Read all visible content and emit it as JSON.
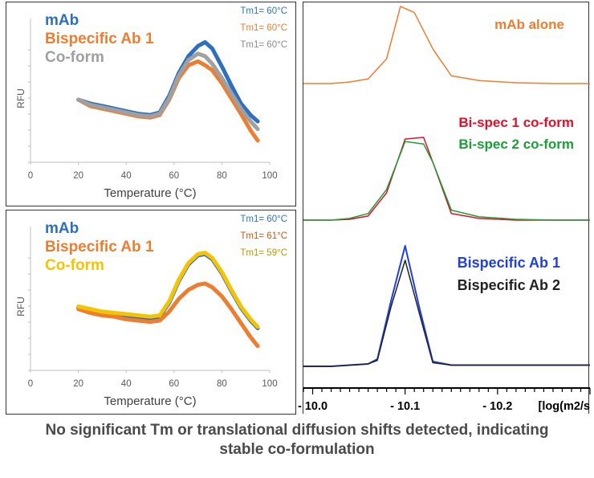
{
  "dsf_panels": [
    {
      "id": "top",
      "legend": [
        {
          "name": "mAb",
          "color": "#2e6fc0"
        },
        {
          "name": "Bispecific Ab 1",
          "color": "#ed7d31"
        },
        {
          "name": "Co-form",
          "color": "#a0a0a0"
        }
      ],
      "tm": [
        {
          "text": "Tm1= 60°C",
          "color": "#2e75b6"
        },
        {
          "text": "Tm1= 60°C",
          "color": "#ed7d31"
        },
        {
          "text": "Tm1= 60°C",
          "color": "#8c8c8c"
        }
      ],
      "ylabel": "RFU",
      "xlabel": "Temperature (°C)",
      "xticks": [
        "0",
        "20",
        "40",
        "60",
        "80",
        "100"
      ]
    },
    {
      "id": "bottom",
      "legend": [
        {
          "name": "mAb",
          "color": "#2e6fc0"
        },
        {
          "name": "Bispecific Ab 1",
          "color": "#ed7d31"
        },
        {
          "name": "Co-form",
          "color": "#f5c400"
        }
      ],
      "tm": [
        {
          "text": "Tm1= 60°C",
          "color": "#2e75b6"
        },
        {
          "text": "Tm1= 61°C",
          "color": "#c55a11"
        },
        {
          "text": "Tm1= 59°C",
          "color": "#b59b00"
        }
      ],
      "ylabel": "RFU",
      "xlabel": "Temperature (°C)",
      "xticks": [
        "0",
        "20",
        "40",
        "60",
        "80",
        "100"
      ]
    }
  ],
  "dosy": {
    "labels": [
      {
        "text": "mAb alone",
        "color": "#ed7d31"
      },
      {
        "text": "Bi-spec 1 co-form",
        "color": "#e0102a"
      },
      {
        "text": "Bi-spec 2 co-form",
        "color": "#1a9e35"
      },
      {
        "text": "Bispecific Ab 1",
        "color": "#1f3fe0"
      },
      {
        "text": "Bispecific Ab 2",
        "color": "#222222"
      }
    ],
    "xticks": [
      "- 10.0",
      "- 10.1",
      "- 10.2"
    ],
    "xlabel": "[log(m2/s"
  },
  "caption_line1": "No significant Tm or translational diffusion shifts detected, indicating",
  "caption_line2": "stable co-formulation",
  "chart_data": [
    {
      "type": "line",
      "panel": "DSF top",
      "xlabel": "Temperature (°C)",
      "ylabel": "RFU",
      "xlim": [
        0,
        100
      ],
      "ylim": [
        0,
        100
      ],
      "series": [
        {
          "name": "mAb",
          "x": [
            20,
            25,
            30,
            35,
            40,
            45,
            50,
            54,
            58,
            62,
            66,
            70,
            73,
            76,
            80,
            84,
            88,
            92,
            95
          ],
          "y": [
            49,
            46,
            44,
            42,
            40,
            38,
            37,
            39,
            52,
            70,
            83,
            91,
            94,
            89,
            75,
            60,
            46,
            37,
            32
          ]
        },
        {
          "name": "Bispecific Ab 1",
          "x": [
            20,
            25,
            30,
            35,
            40,
            45,
            50,
            54,
            58,
            62,
            66,
            70,
            73,
            76,
            80,
            84,
            88,
            92,
            95
          ],
          "y": [
            49,
            44,
            42,
            40,
            38,
            36,
            35,
            37,
            49,
            66,
            76,
            79,
            76,
            72,
            62,
            50,
            38,
            25,
            17
          ]
        },
        {
          "name": "Co-form",
          "x": [
            20,
            25,
            30,
            35,
            40,
            45,
            50,
            54,
            58,
            62,
            66,
            70,
            73,
            76,
            80,
            84,
            88,
            92,
            95
          ],
          "y": [
            49,
            45,
            43,
            41,
            39,
            37,
            36,
            38,
            50,
            68,
            80,
            85,
            83,
            77,
            66,
            54,
            42,
            32,
            26
          ]
        }
      ]
    },
    {
      "type": "line",
      "panel": "DSF bottom",
      "xlabel": "Temperature (°C)",
      "ylabel": "RFU",
      "xlim": [
        0,
        100
      ],
      "ylim": [
        0,
        100
      ],
      "series": [
        {
          "name": "mAb",
          "x": [
            20,
            25,
            30,
            35,
            40,
            45,
            50,
            54,
            58,
            62,
            66,
            70,
            73,
            76,
            80,
            84,
            88,
            92,
            95
          ],
          "y": [
            49,
            47,
            45,
            44,
            42,
            41,
            40,
            42,
            53,
            70,
            83,
            90,
            91,
            87,
            76,
            62,
            49,
            39,
            33
          ]
        },
        {
          "name": "Bispecific Ab 1",
          "x": [
            20,
            25,
            30,
            35,
            40,
            45,
            50,
            54,
            58,
            62,
            66,
            70,
            73,
            76,
            80,
            84,
            88,
            92,
            95
          ],
          "y": [
            48,
            45,
            43,
            42,
            40,
            39,
            38,
            39,
            46,
            56,
            63,
            67,
            68,
            65,
            58,
            48,
            37,
            26,
            19
          ]
        },
        {
          "name": "Co-form",
          "x": [
            20,
            25,
            30,
            35,
            40,
            45,
            50,
            54,
            58,
            62,
            66,
            70,
            73,
            76,
            80,
            84,
            88,
            92,
            95
          ],
          "y": [
            50,
            48,
            46,
            45,
            44,
            43,
            42,
            43,
            54,
            71,
            84,
            91,
            92,
            88,
            77,
            63,
            50,
            40,
            34
          ]
        }
      ]
    },
    {
      "type": "line",
      "panel": "DOSY",
      "xlabel": "[log(m2/s",
      "xlim": [
        -9.99,
        -10.3
      ],
      "series": [
        {
          "name": "mAb alone",
          "x": [
            -9.99,
            -10.0,
            -10.02,
            -10.04,
            -10.06,
            -10.08,
            -10.095,
            -10.11,
            -10.13,
            -10.15,
            -10.18,
            -10.22,
            -10.26,
            -10.3
          ],
          "y": [
            0,
            0,
            0,
            0.02,
            0.06,
            0.32,
            1.0,
            0.92,
            0.45,
            0.1,
            0.04,
            0.01,
            0,
            0
          ]
        },
        {
          "name": "Bi-spec 1 co-form",
          "x": [
            -9.99,
            -10.0,
            -10.02,
            -10.04,
            -10.06,
            -10.08,
            -10.1,
            -10.12,
            -10.13,
            -10.15,
            -10.18,
            -10.22,
            -10.26,
            -10.3
          ],
          "y": [
            0,
            0,
            0,
            0.01,
            0.05,
            0.33,
            0.98,
            1.0,
            0.7,
            0.08,
            0.02,
            0,
            0,
            0
          ]
        },
        {
          "name": "Bi-spec 2 co-form",
          "x": [
            -9.99,
            -10.0,
            -10.02,
            -10.04,
            -10.06,
            -10.08,
            -10.1,
            -10.12,
            -10.13,
            -10.15,
            -10.18,
            -10.22,
            -10.26,
            -10.3
          ],
          "y": [
            0,
            0,
            0,
            0.02,
            0.08,
            0.37,
            0.95,
            0.92,
            0.7,
            0.12,
            0.04,
            0.01,
            0,
            0
          ]
        },
        {
          "name": "Bispecific Ab 1",
          "x": [
            -9.99,
            -10.0,
            -10.02,
            -10.04,
            -10.06,
            -10.07,
            -10.085,
            -10.1,
            -10.115,
            -10.13,
            -10.15,
            -10.18,
            -10.22,
            -10.26,
            -10.3
          ],
          "y": [
            0,
            0,
            0,
            0.01,
            0.02,
            0.06,
            0.55,
            1.0,
            0.5,
            0.04,
            0.01,
            0.01,
            0.01,
            0.01,
            0.01
          ]
        },
        {
          "name": "Bispecific Ab 2",
          "x": [
            -9.99,
            -10.0,
            -10.02,
            -10.04,
            -10.06,
            -10.07,
            -10.085,
            -10.1,
            -10.115,
            -10.13,
            -10.15,
            -10.18,
            -10.22,
            -10.26,
            -10.3
          ],
          "y": [
            0,
            0,
            0,
            0.01,
            0.02,
            0.05,
            0.5,
            0.88,
            0.45,
            0.03,
            0.01,
            0.01,
            0.01,
            0.01,
            0.01
          ]
        }
      ]
    }
  ]
}
